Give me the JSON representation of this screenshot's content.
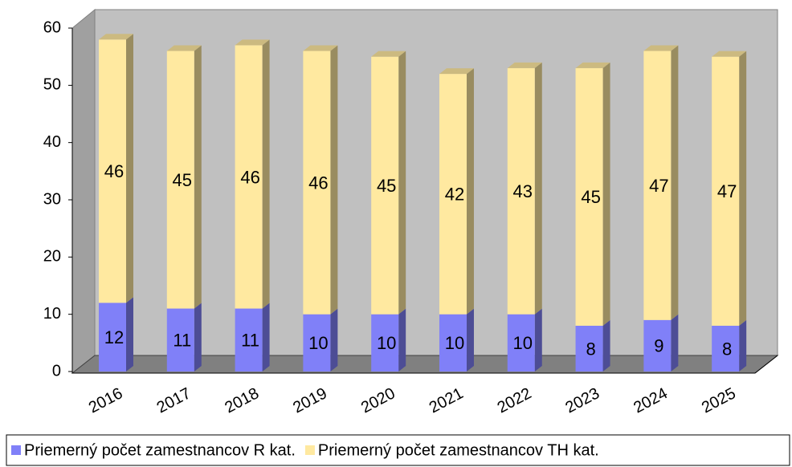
{
  "chart_data": {
    "type": "bar",
    "stacked": true,
    "categories": [
      "2016",
      "2017",
      "2018",
      "2019",
      "2020",
      "2021",
      "2022",
      "2023",
      "2024",
      "2025"
    ],
    "series": [
      {
        "name": "Priemerný počet zamestnancov R kat.",
        "color": "#8080f8",
        "values": [
          12,
          11,
          11,
          10,
          10,
          10,
          10,
          8,
          9,
          8
        ]
      },
      {
        "name": "Priemerný počet zamestnancov TH kat.",
        "color": "#ffe9a0",
        "values": [
          46,
          45,
          46,
          46,
          45,
          42,
          43,
          45,
          47,
          47
        ]
      }
    ],
    "ylim": [
      0,
      60
    ],
    "yticks": [
      0,
      10,
      20,
      30,
      40,
      50,
      60
    ],
    "legend": "bottom"
  }
}
